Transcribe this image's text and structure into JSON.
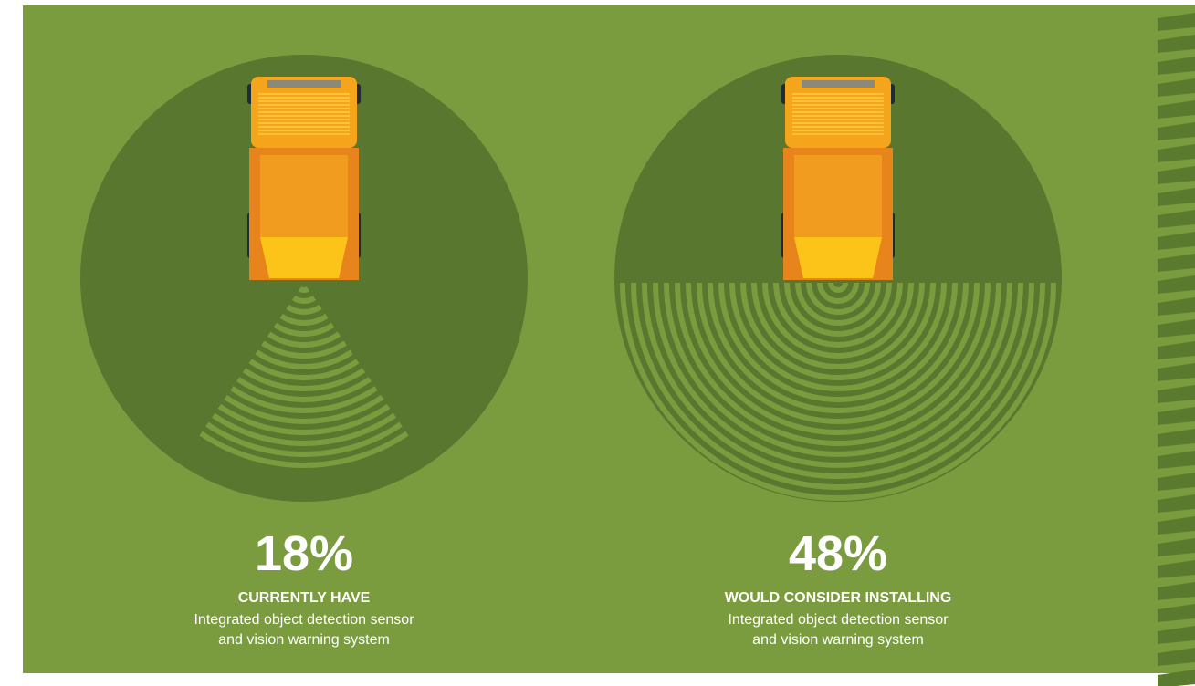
{
  "panels": [
    {
      "stat": "18%",
      "heading": "CURRENTLY HAVE",
      "description": [
        "Integrated object detection sensor",
        "and vision warning system"
      ]
    },
    {
      "stat": "48%",
      "heading": "WOULD CONSIDER INSTALLING",
      "description": [
        "Integrated object detection sensor",
        "and vision warning system"
      ]
    }
  ]
}
